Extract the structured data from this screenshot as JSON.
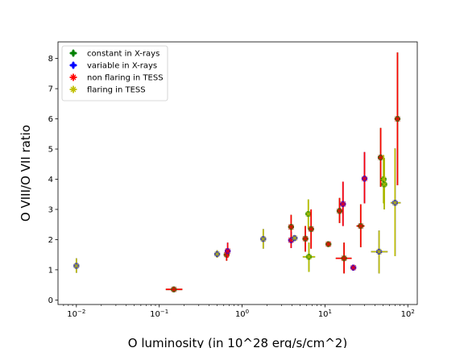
{
  "colors": {
    "constant": "#008000",
    "variable": "#0000ff",
    "non_flaring": "#ff0000",
    "flaring": "#bfbf00"
  },
  "chart_data": {
    "type": "scatter",
    "title": "",
    "xlabel": "O luminosity  (in 10^28 erg/s/cm^2)",
    "xlabel_parts": {
      "pre": "O luminosity  (in 10^28 erg/s/cm^2)",
      "sup": ""
    },
    "ylabel": "O VIII/O VII ratio",
    "xscale": "log",
    "xlim": [
      0.006,
      130
    ],
    "ylim": [
      -0.15,
      8.55
    ],
    "x_ticks": [
      {
        "value": 0.01,
        "base": "10",
        "exp": "−2"
      },
      {
        "value": 0.1,
        "base": "10",
        "exp": "−1"
      },
      {
        "value": 1,
        "base": "10",
        "exp": "0"
      },
      {
        "value": 10,
        "base": "10",
        "exp": "1"
      },
      {
        "value": 100,
        "base": "10",
        "exp": "2"
      }
    ],
    "y_ticks": [
      "0",
      "1",
      "2",
      "3",
      "4",
      "5",
      "6",
      "7",
      "8"
    ],
    "grid": false,
    "legend_position": "top-left",
    "legend": [
      {
        "label": "constant in X-rays",
        "marker": "filled-plus",
        "color_key": "constant"
      },
      {
        "label": "variable in X-rays",
        "marker": "filled-plus",
        "color_key": "variable"
      },
      {
        "label": "non flaring in TESS",
        "marker": "x-plus",
        "color_key": "non_flaring"
      },
      {
        "label": "flaring in TESS",
        "marker": "x-plus",
        "color_key": "flaring"
      }
    ],
    "points": [
      {
        "x": 0.01,
        "y": 1.13,
        "ylo": 0.9,
        "yhi": 1.38,
        "xlo": 0.01,
        "xhi": 0.01,
        "xray": "variable",
        "tess": "flaring"
      },
      {
        "x": 0.15,
        "y": 0.35,
        "ylo": 0.3,
        "yhi": 0.4,
        "xlo": 0.12,
        "xhi": 0.19,
        "xray": "constant",
        "tess": "non_flaring"
      },
      {
        "x": 0.5,
        "y": 1.52,
        "ylo": 1.4,
        "yhi": 1.65,
        "xlo": 0.5,
        "xhi": 0.5,
        "xray": "variable",
        "tess": "flaring"
      },
      {
        "x": 0.65,
        "y": 1.5,
        "ylo": 1.3,
        "yhi": 1.7,
        "xlo": 0.63,
        "xhi": 0.67,
        "xray": "constant",
        "tess": "non_flaring"
      },
      {
        "x": 0.67,
        "y": 1.62,
        "ylo": 1.4,
        "yhi": 1.9,
        "xlo": 0.67,
        "xhi": 0.67,
        "xray": "variable",
        "tess": "non_flaring"
      },
      {
        "x": 1.8,
        "y": 2.02,
        "ylo": 1.7,
        "yhi": 2.35,
        "xlo": 1.8,
        "xhi": 1.8,
        "xray": "variable",
        "tess": "flaring"
      },
      {
        "x": 3.9,
        "y": 2.42,
        "ylo": 2.05,
        "yhi": 2.82,
        "xlo": 3.9,
        "xhi": 3.9,
        "xray": "constant",
        "tess": "non_flaring"
      },
      {
        "x": 3.9,
        "y": 1.98,
        "ylo": 1.72,
        "yhi": 2.25,
        "xlo": 3.9,
        "xhi": 3.9,
        "xray": "variable",
        "tess": "non_flaring"
      },
      {
        "x": 4.3,
        "y": 2.05,
        "ylo": 1.95,
        "yhi": 2.15,
        "xlo": 4.3,
        "xhi": 4.3,
        "xray": "variable",
        "tess": "flaring"
      },
      {
        "x": 5.8,
        "y": 2.03,
        "ylo": 1.6,
        "yhi": 2.45,
        "xlo": 5.8,
        "xhi": 5.8,
        "xray": "constant",
        "tess": "non_flaring"
      },
      {
        "x": 6.3,
        "y": 2.85,
        "ylo": 2.35,
        "yhi": 3.33,
        "xlo": 6.3,
        "xhi": 6.3,
        "xray": "constant",
        "tess": "flaring"
      },
      {
        "x": 6.4,
        "y": 1.43,
        "ylo": 0.93,
        "yhi": 1.9,
        "xlo": 5.4,
        "xhi": 7.6,
        "xray": "constant",
        "tess": "flaring"
      },
      {
        "x": 6.8,
        "y": 2.35,
        "ylo": 1.7,
        "yhi": 3.0,
        "xlo": 6.8,
        "xhi": 6.8,
        "xray": "constant",
        "tess": "non_flaring"
      },
      {
        "x": 11,
        "y": 1.85,
        "ylo": 1.85,
        "yhi": 1.85,
        "xlo": 11,
        "xhi": 11,
        "xray": "constant",
        "tess": "non_flaring"
      },
      {
        "x": 15,
        "y": 2.95,
        "ylo": 2.55,
        "yhi": 3.38,
        "xlo": 15,
        "xhi": 15,
        "xray": "constant",
        "tess": "non_flaring"
      },
      {
        "x": 16.5,
        "y": 3.18,
        "ylo": 2.45,
        "yhi": 3.92,
        "xlo": 16.5,
        "xhi": 16.5,
        "xray": "variable",
        "tess": "non_flaring"
      },
      {
        "x": 17,
        "y": 1.38,
        "ylo": 0.88,
        "yhi": 1.9,
        "xlo": 13.5,
        "xhi": 21,
        "xray": "constant",
        "tess": "non_flaring"
      },
      {
        "x": 22,
        "y": 1.07,
        "ylo": 0.97,
        "yhi": 1.17,
        "xlo": 22,
        "xhi": 22,
        "xray": "variable",
        "tess": "non_flaring"
      },
      {
        "x": 27,
        "y": 2.45,
        "ylo": 1.75,
        "yhi": 3.17,
        "xlo": 24,
        "xhi": 30,
        "xray": "constant",
        "tess": "non_flaring"
      },
      {
        "x": 30,
        "y": 4.02,
        "ylo": 3.2,
        "yhi": 4.9,
        "xlo": 30,
        "xhi": 30,
        "xray": "variable",
        "tess": "non_flaring"
      },
      {
        "x": 45,
        "y": 1.6,
        "ylo": 0.88,
        "yhi": 2.3,
        "xlo": 36,
        "xhi": 57,
        "xray": "variable",
        "tess": "flaring"
      },
      {
        "x": 47,
        "y": 4.72,
        "ylo": 3.75,
        "yhi": 5.7,
        "xlo": 47,
        "xhi": 47,
        "xray": "constant",
        "tess": "non_flaring"
      },
      {
        "x": 51,
        "y": 4.0,
        "ylo": 3.2,
        "yhi": 4.8,
        "xlo": 51,
        "xhi": 51,
        "xray": "constant",
        "tess": "flaring"
      },
      {
        "x": 52,
        "y": 3.83,
        "ylo": 3.0,
        "yhi": 4.7,
        "xlo": 52,
        "xhi": 52,
        "xray": "constant",
        "tess": "flaring"
      },
      {
        "x": 70,
        "y": 3.22,
        "ylo": 1.45,
        "yhi": 5.02,
        "xlo": 62,
        "xhi": 82,
        "xray": "variable",
        "tess": "flaring"
      },
      {
        "x": 75,
        "y": 6.0,
        "ylo": 3.8,
        "yhi": 8.2,
        "xlo": 75,
        "xhi": 75,
        "xray": "constant",
        "tess": "non_flaring"
      }
    ]
  }
}
